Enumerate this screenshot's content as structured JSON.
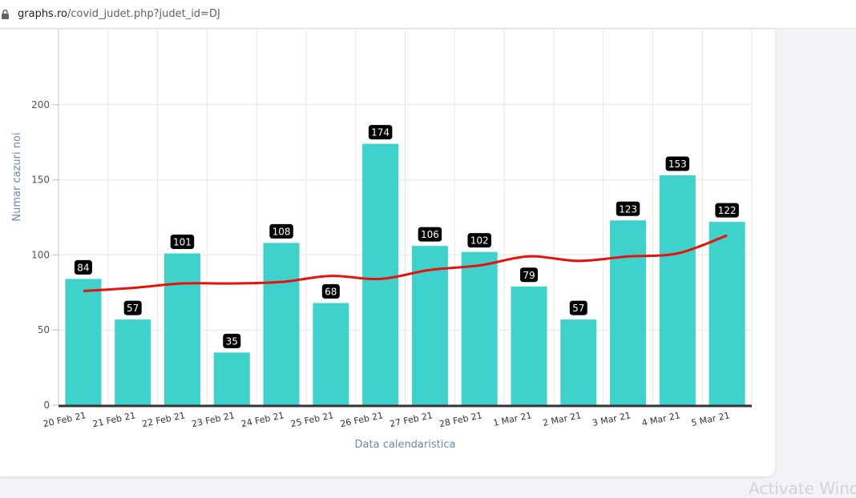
{
  "browser": {
    "url_host": "graphs.ro",
    "url_path": "/covid_judet.php?judet_id=DJ"
  },
  "watermark": "Activate Windo",
  "colors": {
    "bar": "#3fd2cc",
    "trend_line": "#e8120c",
    "label_bg": "#000000",
    "grid": "#e6e6e6",
    "baseline": "#333333"
  },
  "chart_data": {
    "type": "bar",
    "categories": [
      "20 Feb 21",
      "21 Feb 21",
      "22 Feb 21",
      "23 Feb 21",
      "24 Feb 21",
      "25 Feb 21",
      "26 Feb 21",
      "27 Feb 21",
      "28 Feb 21",
      "1 Mar 21",
      "2 Mar 21",
      "3 Mar 21",
      "4 Mar 21",
      "5 Mar 21"
    ],
    "values": [
      84,
      57,
      101,
      35,
      108,
      68,
      174,
      106,
      102,
      79,
      57,
      123,
      153,
      122
    ],
    "trend": [
      76,
      78,
      81,
      81,
      82,
      86,
      84,
      90,
      93,
      99,
      96,
      99,
      101,
      113
    ],
    "xlabel": "Data calendaristica",
    "ylabel": "Numar cazuri noi",
    "yticks": [
      0,
      50,
      100,
      150,
      200
    ],
    "ylim": [
      0,
      250
    ],
    "grid": true,
    "data_labels": true
  }
}
